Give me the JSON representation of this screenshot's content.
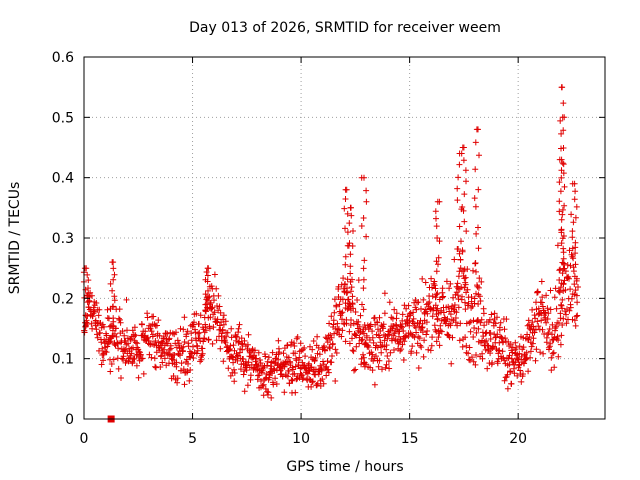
{
  "chart_data": {
    "type": "scatter",
    "title": "Day 013 of 2026, SRMTID for receiver weem",
    "xlabel": "GPS time / hours",
    "ylabel": "SRMTID / TECUs",
    "xlim": [
      0,
      24
    ],
    "ylim": [
      0,
      0.6
    ],
    "x_ticks": [
      0,
      5,
      10,
      15,
      20
    ],
    "x_tick_labels": [
      "0",
      "5",
      "10",
      "15",
      "20"
    ],
    "y_ticks": [
      0,
      0.1,
      0.2,
      0.3,
      0.4,
      0.5,
      0.6
    ],
    "y_tick_labels": [
      "0",
      "0.1",
      "0.2",
      "0.3",
      "0.4",
      "0.5",
      "0.6"
    ],
    "grid": true,
    "marker": "plus",
    "color": "#e00000",
    "special_marker": {
      "x": 1.25,
      "y": 0.0,
      "shape": "square"
    },
    "series": [
      {
        "name": "SRMTID",
        "profile_hours": [
          0,
          0.2,
          0.5,
          1,
          1.5,
          2,
          2.5,
          3,
          3.5,
          4,
          4.5,
          5,
          5.5,
          5.8,
          6.2,
          6.5,
          7,
          7.5,
          8,
          8.5,
          9,
          9.5,
          10,
          10.5,
          11,
          11.5,
          12,
          12.5,
          13,
          13.5,
          14,
          14.5,
          15,
          15.5,
          16,
          16.5,
          17,
          17.5,
          18,
          18.5,
          19,
          19.5,
          20,
          20.5,
          21,
          21.5,
          22,
          22.5,
          22.75
        ],
        "profile_center": [
          0.14,
          0.2,
          0.17,
          0.13,
          0.14,
          0.12,
          0.11,
          0.15,
          0.12,
          0.11,
          0.11,
          0.12,
          0.14,
          0.19,
          0.17,
          0.13,
          0.11,
          0.1,
          0.08,
          0.07,
          0.09,
          0.1,
          0.09,
          0.08,
          0.1,
          0.14,
          0.2,
          0.15,
          0.12,
          0.13,
          0.14,
          0.15,
          0.16,
          0.14,
          0.2,
          0.16,
          0.18,
          0.2,
          0.19,
          0.14,
          0.13,
          0.11,
          0.09,
          0.12,
          0.17,
          0.14,
          0.19,
          0.23,
          0.2
        ],
        "profile_spread": [
          0.04,
          0.04,
          0.04,
          0.04,
          0.05,
          0.05,
          0.04,
          0.04,
          0.04,
          0.04,
          0.04,
          0.04,
          0.04,
          0.05,
          0.04,
          0.04,
          0.04,
          0.04,
          0.035,
          0.03,
          0.04,
          0.04,
          0.035,
          0.035,
          0.05,
          0.06,
          0.08,
          0.07,
          0.05,
          0.05,
          0.05,
          0.05,
          0.05,
          0.05,
          0.06,
          0.06,
          0.07,
          0.09,
          0.08,
          0.05,
          0.05,
          0.05,
          0.04,
          0.05,
          0.06,
          0.05,
          0.08,
          0.09,
          0.06
        ],
        "peaks": [
          {
            "x": 0.1,
            "y": 0.25
          },
          {
            "x": 1.3,
            "y": 0.26
          },
          {
            "x": 5.7,
            "y": 0.25
          },
          {
            "x": 12.1,
            "y": 0.38
          },
          {
            "x": 12.3,
            "y": 0.35
          },
          {
            "x": 12.9,
            "y": 0.4
          },
          {
            "x": 16.3,
            "y": 0.36
          },
          {
            "x": 17.3,
            "y": 0.44
          },
          {
            "x": 17.5,
            "y": 0.45
          },
          {
            "x": 18.1,
            "y": 0.48
          },
          {
            "x": 22.0,
            "y": 0.55
          },
          {
            "x": 22.05,
            "y": 0.5
          },
          {
            "x": 22.0,
            "y": 0.43
          },
          {
            "x": 22.6,
            "y": 0.39
          }
        ]
      }
    ]
  }
}
